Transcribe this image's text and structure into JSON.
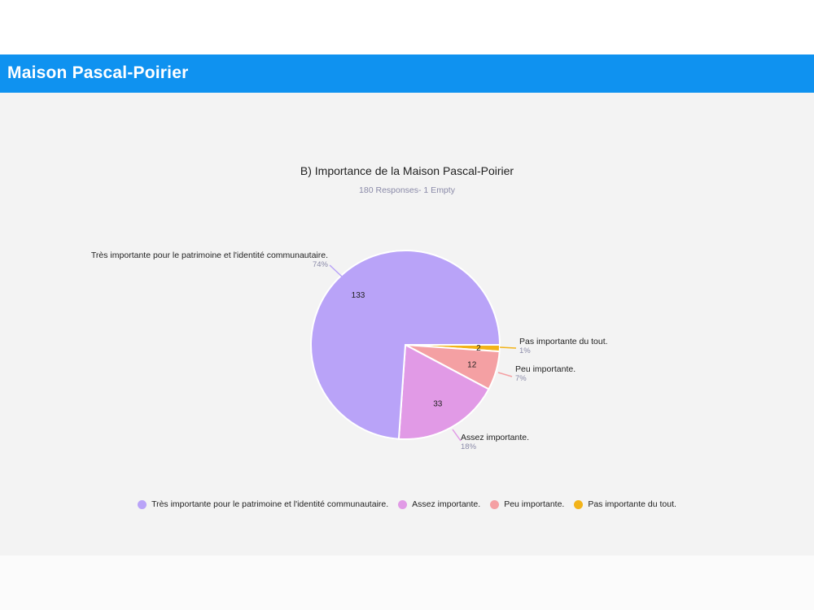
{
  "header": {
    "title": "Maison Pascal-Poirier"
  },
  "chart_data": {
    "type": "pie",
    "title": "B) Importance de la Maison Pascal-Poirier",
    "subtitle": "180 Responses- 1 Empty",
    "categories": [
      "Très importante pour le patrimoine et l'identité communautaire.",
      "Assez importante.",
      "Peu importante.",
      "Pas importante du tout."
    ],
    "values": [
      133,
      33,
      12,
      2
    ],
    "percent_labels": [
      "74%",
      "18%",
      "7%",
      "1%"
    ],
    "colors": [
      "#b9a3f8",
      "#e19ae6",
      "#f4a0a3",
      "#f2b319"
    ],
    "legend_position": "bottom"
  }
}
